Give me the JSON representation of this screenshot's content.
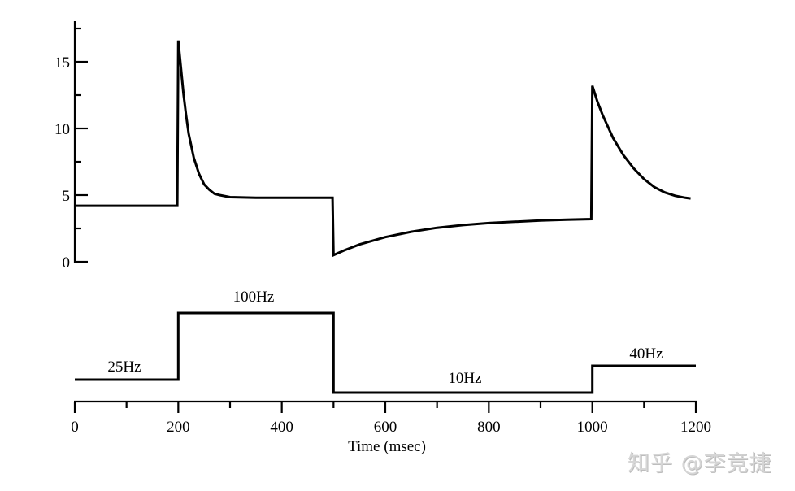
{
  "chart_data": {
    "type": "line",
    "title": "",
    "xlabel": "Time (msec)",
    "ylabel": "",
    "xlim": [
      0,
      1200
    ],
    "ylim": [
      0,
      17.5
    ],
    "x_ticks": [
      0,
      200,
      400,
      600,
      800,
      1000,
      1200
    ],
    "x_minor_ticks": [
      100,
      300,
      500,
      700,
      900,
      1100
    ],
    "y_ticks": [
      0,
      5,
      10,
      15
    ],
    "y_minor_ticks": [
      2.5,
      7.5,
      12.5,
      17.5
    ],
    "grid": false,
    "legend": null,
    "series": [
      {
        "name": "response",
        "description": "Upper trace: adapting response to step changes in input rate",
        "points": [
          [
            0,
            4.2
          ],
          [
            198,
            4.2
          ],
          [
            200,
            16.6
          ],
          [
            205,
            14.6
          ],
          [
            210,
            12.6
          ],
          [
            215,
            11.0
          ],
          [
            220,
            9.6
          ],
          [
            230,
            7.8
          ],
          [
            240,
            6.6
          ],
          [
            250,
            5.8
          ],
          [
            260,
            5.4
          ],
          [
            270,
            5.1
          ],
          [
            280,
            5.0
          ],
          [
            300,
            4.85
          ],
          [
            350,
            4.8
          ],
          [
            400,
            4.8
          ],
          [
            450,
            4.8
          ],
          [
            498,
            4.8
          ],
          [
            500,
            0.5
          ],
          [
            520,
            0.85
          ],
          [
            550,
            1.3
          ],
          [
            600,
            1.85
          ],
          [
            650,
            2.25
          ],
          [
            700,
            2.55
          ],
          [
            750,
            2.75
          ],
          [
            800,
            2.9
          ],
          [
            850,
            3.0
          ],
          [
            900,
            3.1
          ],
          [
            950,
            3.15
          ],
          [
            998,
            3.2
          ],
          [
            1000,
            13.2
          ],
          [
            1010,
            12.0
          ],
          [
            1020,
            11.0
          ],
          [
            1040,
            9.3
          ],
          [
            1060,
            8.0
          ],
          [
            1080,
            7.0
          ],
          [
            1100,
            6.2
          ],
          [
            1120,
            5.6
          ],
          [
            1140,
            5.2
          ],
          [
            1160,
            4.95
          ],
          [
            1180,
            4.8
          ],
          [
            1190,
            4.75
          ]
        ]
      },
      {
        "name": "stimulus",
        "description": "Lower trace: input firing rate (not scaled to y-axis)",
        "segments": [
          {
            "start": 0,
            "end": 200,
            "label": "25Hz",
            "rate_hz": 25
          },
          {
            "start": 200,
            "end": 500,
            "label": "100Hz",
            "rate_hz": 100
          },
          {
            "start": 500,
            "end": 1000,
            "label": "10Hz",
            "rate_hz": 10
          },
          {
            "start": 1000,
            "end": 1200,
            "label": "40Hz",
            "rate_hz": 40
          }
        ]
      }
    ],
    "annotations": [
      "25Hz",
      "100Hz",
      "10Hz",
      "40Hz"
    ]
  },
  "axes": {
    "x_tick_labels": [
      "0",
      "200",
      "400",
      "600",
      "800",
      "1000",
      "1200"
    ],
    "y_tick_labels": [
      "0",
      "5",
      "10",
      "15"
    ],
    "x_title": "Time (msec)"
  },
  "stimulus_labels": {
    "s25": "25Hz",
    "s100": "100Hz",
    "s10": "10Hz",
    "s40": "40Hz"
  },
  "watermark": "知乎 @李竞捷"
}
